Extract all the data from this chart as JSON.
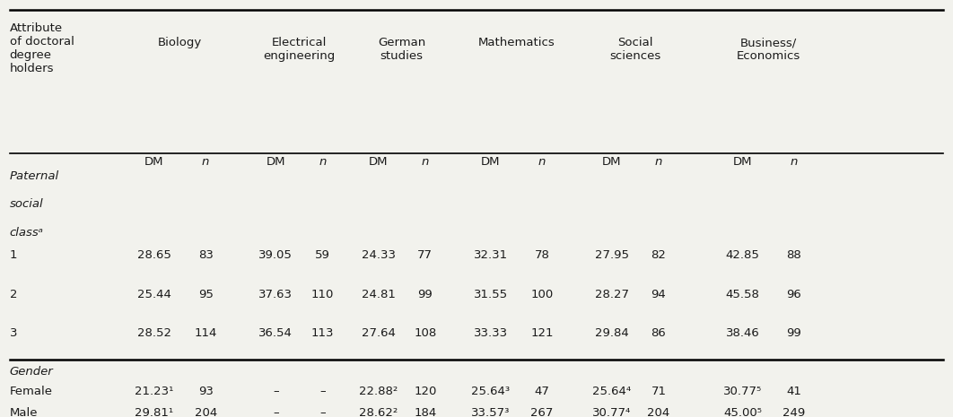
{
  "col_headers": [
    "Biology",
    "Electrical\nengineering",
    "German\nstudies",
    "Mathematics",
    "Social\nsciences",
    "Business/\nEconomics"
  ],
  "section1_label_lines": [
    "Paternal",
    "social",
    "classᵃ"
  ],
  "section2_label": "Gender",
  "dm_n_labels": [
    "DM",
    "n",
    "DM",
    "n",
    "DM",
    "n",
    "DM",
    "n",
    "DM",
    "n",
    "DM",
    "n"
  ],
  "rows_section1": [
    [
      "1",
      "28.65",
      "83",
      "39.05",
      "59",
      "24.33",
      "77",
      "32.31",
      "78",
      "27.95",
      "82",
      "42.85",
      "88"
    ],
    [
      "2",
      "25.44",
      "95",
      "37.63",
      "110",
      "24.81",
      "99",
      "31.55",
      "100",
      "28.27",
      "94",
      "45.58",
      "96"
    ],
    [
      "3",
      "28.52",
      "114",
      "36.54",
      "113",
      "27.64",
      "108",
      "33.33",
      "121",
      "29.84",
      "86",
      "38.46",
      "99"
    ]
  ],
  "rows_section2": [
    [
      "Female",
      "21.23¹",
      "93",
      "–",
      "–",
      "22.88²",
      "120",
      "25.64³",
      "47",
      "25.64⁴",
      "71",
      "30.77⁵",
      "41"
    ],
    [
      "Male",
      "29.81¹",
      "204",
      "–",
      "–",
      "28.62²",
      "184",
      "33.57³",
      "267",
      "30.77⁴",
      "204",
      "45.00⁵",
      "249"
    ]
  ],
  "bg_color": "#f2f2ed",
  "text_color": "#1a1a1a",
  "attr_label": "Attribute\nof doctoral\ndegree\nholders"
}
